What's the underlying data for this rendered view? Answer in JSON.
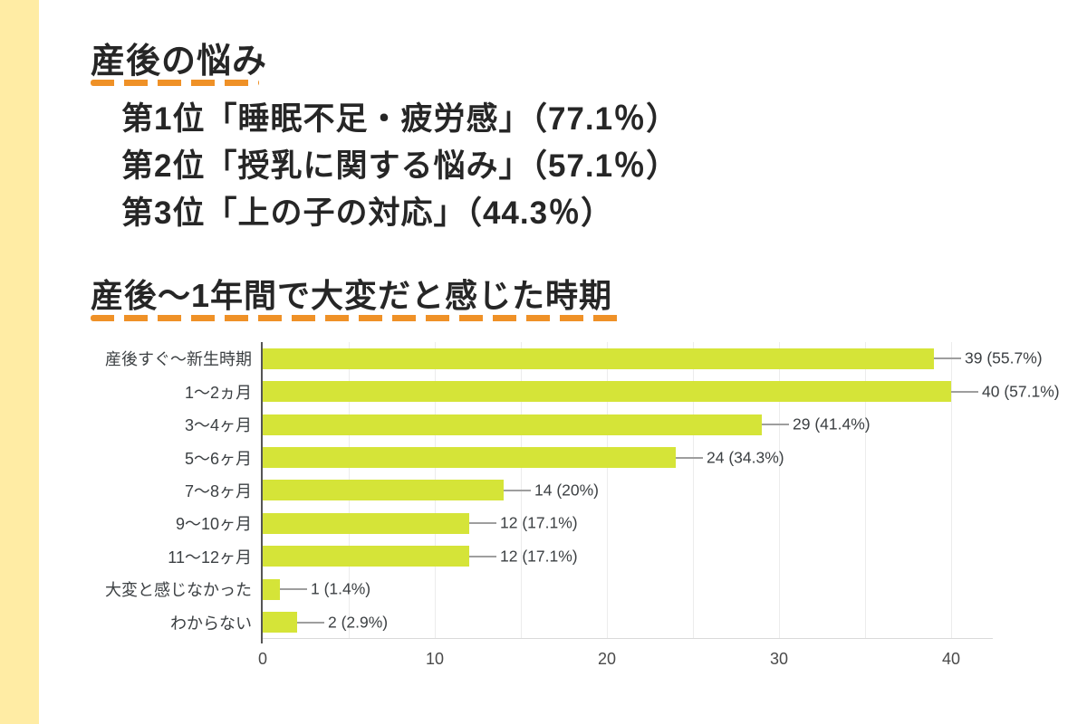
{
  "page": {
    "section1_title": "産後の悩み",
    "rankings": [
      {
        "text": "第1位「睡眠不足・疲労感」（77.1％）"
      },
      {
        "text": "第2位「授乳に関する悩み」（57.1％）"
      },
      {
        "text": "第3位「上の子の対応」（44.3％）"
      }
    ],
    "section2_title": "産後〜1年間で大変だと感じた時期"
  },
  "chart_data": {
    "type": "bar",
    "orientation": "horizontal",
    "title": "産後〜1年間で大変だと感じた時期",
    "categories": [
      "産後すぐ〜新生時期",
      "1〜2ヵ月",
      "3〜4ヶ月",
      "5〜6ヶ月",
      "7〜8ヶ月",
      "9〜10ヶ月",
      "11〜12ヶ月",
      "大変と感じなかった",
      "わからない"
    ],
    "values": [
      39,
      40,
      29,
      24,
      14,
      12,
      12,
      1,
      2
    ],
    "value_labels": [
      "39 (55.7%)",
      "40 (57.1%)",
      "29 (41.4%)",
      "24 (34.3%)",
      "14 (20%)",
      "12 (17.1%)",
      "12 (17.1%)",
      "1 (1.4%)",
      "2 (2.9%)"
    ],
    "xlabel": "",
    "ylabel": "",
    "x_ticks": [
      0,
      10,
      20,
      30,
      40
    ],
    "xlim": [
      0,
      42.4
    ],
    "grid_interval": 5,
    "grid_on": true,
    "legend": "none"
  },
  "theme": {
    "stripe_color": "#ffeca4",
    "underline_color": "#ef9127",
    "bar_color": "#d5e438",
    "axis_color": "#555555",
    "gridline_color": "#ececec",
    "leader_color": "#9e9e9e",
    "label_color": "#3c4043"
  }
}
